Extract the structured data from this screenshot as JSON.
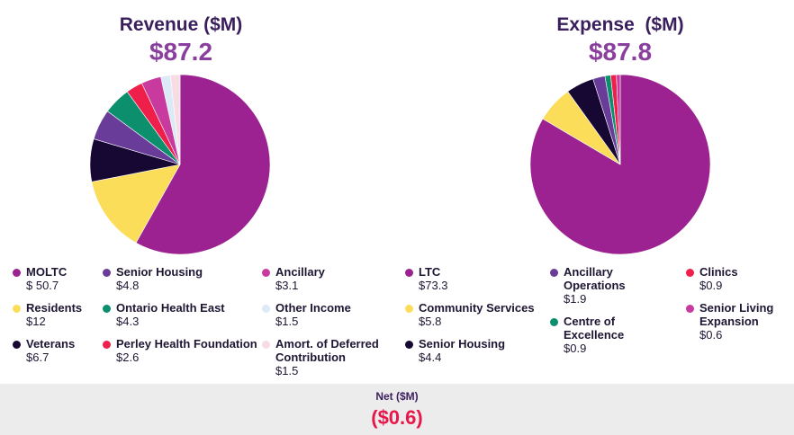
{
  "revenue": {
    "title": "Revenue ($M)",
    "total": "$87.2",
    "legend": [
      {
        "label": "MOLTC",
        "value": "$ 50.7"
      },
      {
        "label": "Residents",
        "value": "$12"
      },
      {
        "label": "Veterans",
        "value": "$6.7"
      },
      {
        "label": "Senior Housing",
        "value": "$4.8"
      },
      {
        "label": "Ontario Health East",
        "value": "$4.3"
      },
      {
        "label": "Perley Health Foundation",
        "value": "$2.6"
      },
      {
        "label": "Ancillary",
        "value": "$3.1"
      },
      {
        "label": "Other Income",
        "value": "$1.5"
      },
      {
        "label": "Amort. of Deferred\nContribution",
        "value": "$1.5"
      }
    ]
  },
  "expense": {
    "title": "Expense  ($M)",
    "total": "$87.8",
    "legend": [
      {
        "label": "LTC",
        "value": "$73.3"
      },
      {
        "label": "Community Services",
        "value": "$5.8"
      },
      {
        "label": "Senior Housing",
        "value": "$4.4"
      },
      {
        "label": "Ancillary\nOperations",
        "value": "$1.9"
      },
      {
        "label": "Centre of\nExcellence",
        "value": "$0.9"
      },
      {
        "label": "Clinics",
        "value": "$0.9"
      },
      {
        "label": "Senior Living\nExpansion",
        "value": "$0.6"
      }
    ]
  },
  "net": {
    "label": "Net ($M)",
    "value": "($0.6)"
  },
  "chart_data": [
    {
      "type": "pie",
      "title": "Revenue ($M)",
      "categories": [
        "MOLTC",
        "Residents",
        "Veterans",
        "Senior Housing",
        "Ontario Health East",
        "Perley Health Foundation",
        "Ancillary",
        "Other Income",
        "Amort. of Deferred Contribution"
      ],
      "values": [
        50.7,
        12,
        6.7,
        4.8,
        4.3,
        2.6,
        3.1,
        1.5,
        1.5
      ],
      "colors": [
        "#9b2290",
        "#fbdd5a",
        "#170733",
        "#6a3c9a",
        "#0b8f6d",
        "#ee1f4b",
        "#c93a9e",
        "#dce9f7",
        "#f7dde3"
      ]
    },
    {
      "type": "pie",
      "title": "Expense ($M)",
      "categories": [
        "LTC",
        "Community Services",
        "Senior Housing",
        "Ancillary Operations",
        "Centre of Excellence",
        "Clinics",
        "Senior Living Expansion"
      ],
      "values": [
        73.3,
        5.8,
        4.4,
        1.9,
        0.9,
        0.9,
        0.6
      ],
      "colors": [
        "#9b2290",
        "#fbdd5a",
        "#170733",
        "#6a3c9a",
        "#0b8f6d",
        "#ee1f4b",
        "#c93a9e"
      ]
    }
  ]
}
